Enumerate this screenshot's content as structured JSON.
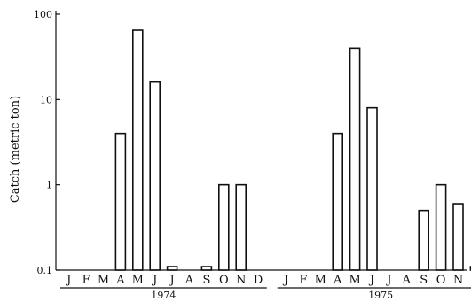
{
  "chart_data": {
    "type": "bar",
    "ylabel": "Catch (metric ton)",
    "xlabel": "",
    "yscale": "log",
    "ylim": [
      0.1,
      100
    ],
    "yticks": [
      {
        "value": 0.1,
        "label": "0.1"
      },
      {
        "value": 1,
        "label": "1"
      },
      {
        "value": 10,
        "label": "10"
      },
      {
        "value": 100,
        "label": "100"
      }
    ],
    "grid": false,
    "months": [
      "J",
      "F",
      "M",
      "A",
      "M",
      "J",
      "J",
      "A",
      "S",
      "O",
      "N",
      "D"
    ],
    "years": [
      {
        "label": "1974",
        "values": [
          null,
          null,
          null,
          4,
          65,
          16,
          0.11,
          null,
          0.11,
          1,
          1,
          null
        ]
      },
      {
        "label": "1975",
        "values": [
          null,
          null,
          null,
          4,
          40,
          8,
          null,
          null,
          0.5,
          1,
          0.6,
          0.11
        ]
      }
    ]
  }
}
